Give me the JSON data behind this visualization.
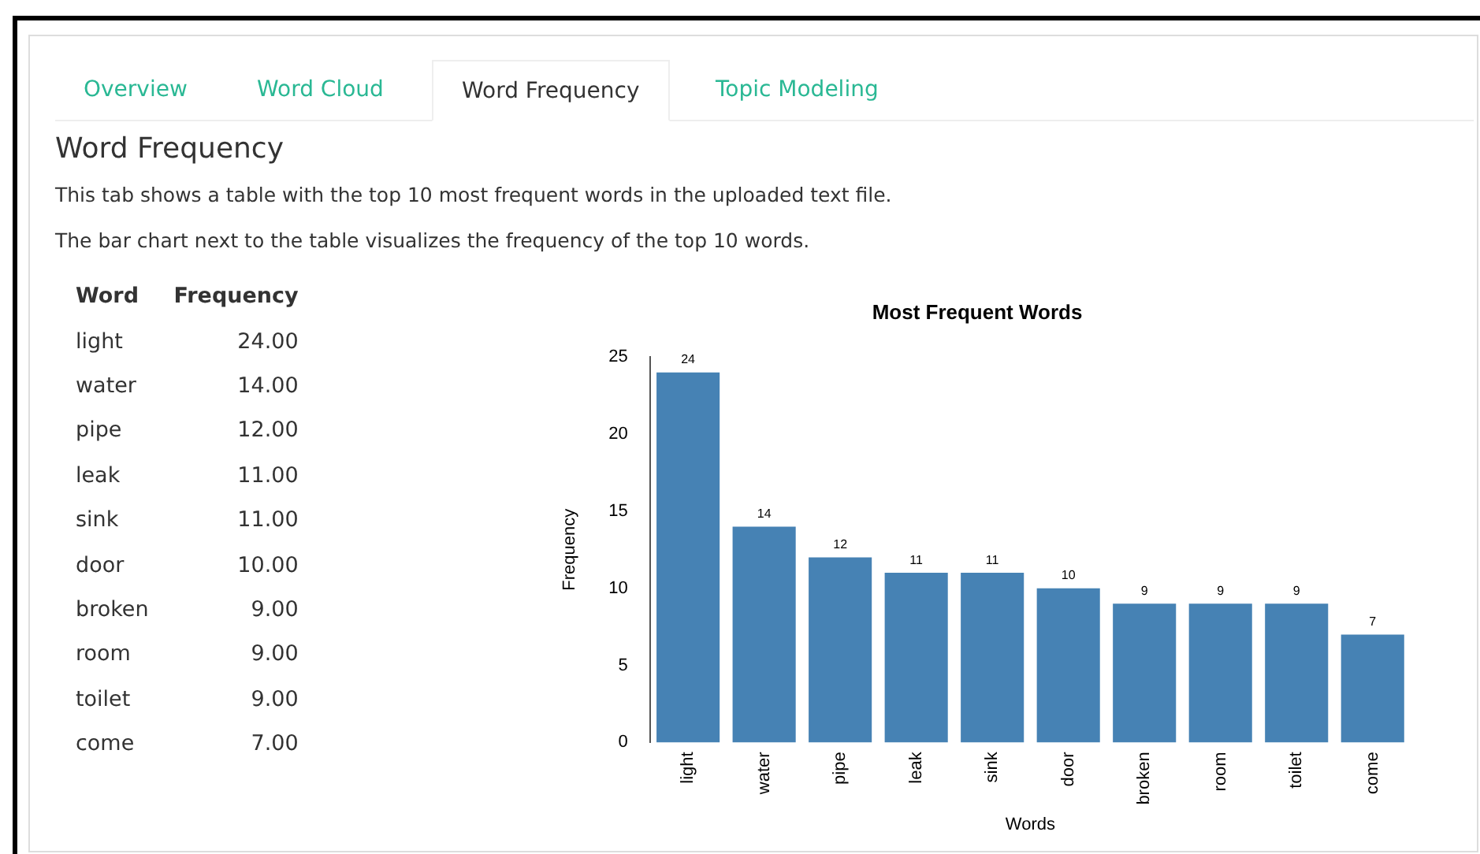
{
  "chart_data": {
    "type": "bar",
    "title": "Most Frequent Words",
    "xlabel": "Words",
    "ylabel": "Frequency",
    "categories": [
      "light",
      "water",
      "pipe",
      "leak",
      "sink",
      "door",
      "broken",
      "room",
      "toilet",
      "come"
    ],
    "values": [
      24,
      14,
      12,
      11,
      11,
      10,
      9,
      9,
      9,
      7
    ],
    "color": "#4682b4",
    "ylim": [
      0,
      25
    ],
    "yticks": [
      0,
      5,
      10,
      15,
      20,
      25
    ],
    "grid": false,
    "legend": false,
    "data_labels": true,
    "annotations": [
      "Overview",
      "Word Cloud",
      "Word Frequency",
      "Topic Modeling",
      "Word Frequency",
      "This tab shows a table with the top 10 most frequent words in the uploaded text file.",
      "The bar chart next to the table visualizes the frequency of the top 10 words.",
      "Word",
      "Frequency",
      "24.00",
      "14.00",
      "12.00",
      "11.00",
      "11.00",
      "10.00",
      "9.00",
      "9.00",
      "9.00",
      "7.00"
    ]
  }
}
